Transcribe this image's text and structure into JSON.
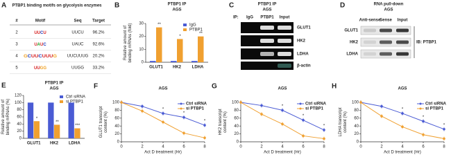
{
  "table": {
    "label": "A",
    "title": "PTBP1 binding motifs on glycolysis enzymes",
    "headers": [
      "#",
      "Motif",
      "Seq",
      "Target"
    ],
    "rows": [
      [
        "2",
        "UUCU",
        "UUCU",
        "96.2%"
      ],
      [
        "3",
        "UAUC",
        "UAUC",
        "92.6%"
      ],
      [
        "4",
        "GCUUCUUUG",
        "UUCUUUG",
        "20.2%"
      ],
      [
        "5",
        "UUGG",
        "UUGG",
        "33.2%"
      ]
    ]
  },
  "blots": [
    {
      "label": "C",
      "title": "PTBP1 IP",
      "subtitle": "AGS",
      "ip_label": "IP:",
      "lanes": [
        "IgG",
        "PTBP1",
        "Input"
      ],
      "rows": [
        "GLUT1",
        "HK2",
        "LDHA",
        "β-actin"
      ]
    },
    {
      "label": "D",
      "title": "RNA pull-down",
      "subtitle": "AGS",
      "lanes": [
        "Anti-sense",
        "Sense",
        "Input"
      ],
      "rows": [
        "GLUT1",
        "HK2",
        "LDHA"
      ],
      "side_label": "IB: PTBP1"
    }
  ],
  "chart_data": [
    {
      "type": "bar",
      "label": "B",
      "title": "PTBP1 IP",
      "subtitle": "AGS",
      "ylabel": [
        "Relative amount of",
        "binding mRNAs (fold)"
      ],
      "categories": [
        "GLUT1",
        "HK2",
        "LDHA"
      ],
      "series": [
        {
          "name": "IgG",
          "color": "#4a5bd4",
          "values": [
            1,
            1,
            1
          ]
        },
        {
          "name": "PTBP1",
          "color": "#f0a030",
          "values": [
            27,
            18,
            20
          ]
        }
      ],
      "significance": [
        "**",
        "*",
        "**"
      ],
      "ylim": [
        0,
        30
      ],
      "yticks": [
        0,
        10,
        20,
        30
      ]
    },
    {
      "type": "bar",
      "label": "E",
      "title": "PTBP1 IP",
      "subtitle": "AGS",
      "ylabel": [
        "Relative amount of",
        "binding mRNAs (%)"
      ],
      "categories": [
        "GLUT1",
        "HK2",
        "LDHA"
      ],
      "series": [
        {
          "name": "Ctrl siRNA",
          "color": "#4a5bd4",
          "values": [
            100,
            100,
            100
          ]
        },
        {
          "name": "si PTBP1",
          "color": "#f0a030",
          "values": [
            48,
            38,
            28
          ]
        }
      ],
      "significance": [
        "*",
        "**",
        "***"
      ],
      "ylim": [
        0,
        120
      ],
      "yticks": [
        0,
        20,
        40,
        60,
        80,
        100,
        120
      ]
    },
    {
      "type": "line",
      "label": "F",
      "title": "AGS",
      "ylabel": [
        "GLUT1 transcript",
        "content (%)"
      ],
      "xlabel": "Act D treatment (Hr)",
      "x": [
        0,
        2,
        4,
        6,
        8
      ],
      "series": [
        {
          "name": "Ctrl siRNA",
          "color": "#4a5bd4",
          "values": [
            100,
            90,
            72,
            62,
            42
          ]
        },
        {
          "name": "si PTBP1",
          "color": "#f0a030",
          "values": [
            100,
            78,
            50,
            22,
            10
          ]
        }
      ],
      "significance": [
        null,
        null,
        "*",
        "*",
        "*"
      ],
      "xlim": [
        0,
        8
      ],
      "xticks": [
        0,
        2,
        4,
        6,
        8
      ],
      "ylim": [
        0,
        100
      ],
      "yticks": [
        0,
        20,
        40,
        60,
        80,
        100
      ]
    },
    {
      "type": "line",
      "label": "G",
      "title": "AGS",
      "ylabel": [
        "HK2 transcript",
        "content (%)"
      ],
      "xlabel": "Act D treatment (Hr)",
      "x": [
        0,
        2,
        4,
        6,
        8
      ],
      "series": [
        {
          "name": "Ctrl siRNA",
          "color": "#4a5bd4",
          "values": [
            100,
            92,
            80,
            55,
            30
          ]
        },
        {
          "name": "si PTBP1",
          "color": "#f0a030",
          "values": [
            100,
            70,
            45,
            15,
            8
          ]
        }
      ],
      "significance": [
        null,
        null,
        "*",
        "*",
        "*"
      ],
      "xlim": [
        0,
        8
      ],
      "xticks": [
        0,
        2,
        4,
        6,
        8
      ],
      "ylim": [
        0,
        100
      ],
      "yticks": [
        0,
        20,
        40,
        60,
        80,
        100
      ]
    },
    {
      "type": "line",
      "label": "H",
      "title": "AGS",
      "ylabel": [
        "LDHA transcript",
        "content (%)"
      ],
      "xlabel": "Act D treatment (Hr)",
      "x": [
        0,
        2,
        4,
        6,
        8
      ],
      "series": [
        {
          "name": "Ctrl siRNA",
          "color": "#4a5bd4",
          "values": [
            100,
            90,
            72,
            52,
            32
          ]
        },
        {
          "name": "si PTBP1",
          "color": "#f0a030",
          "values": [
            100,
            65,
            38,
            18,
            8
          ]
        }
      ],
      "significance": [
        null,
        null,
        "*",
        "*",
        "*"
      ],
      "xlim": [
        0,
        8
      ],
      "xticks": [
        0,
        2,
        4,
        6,
        8
      ],
      "ylim": [
        0,
        100
      ],
      "yticks": [
        0,
        20,
        40,
        60,
        80,
        100
      ]
    }
  ]
}
